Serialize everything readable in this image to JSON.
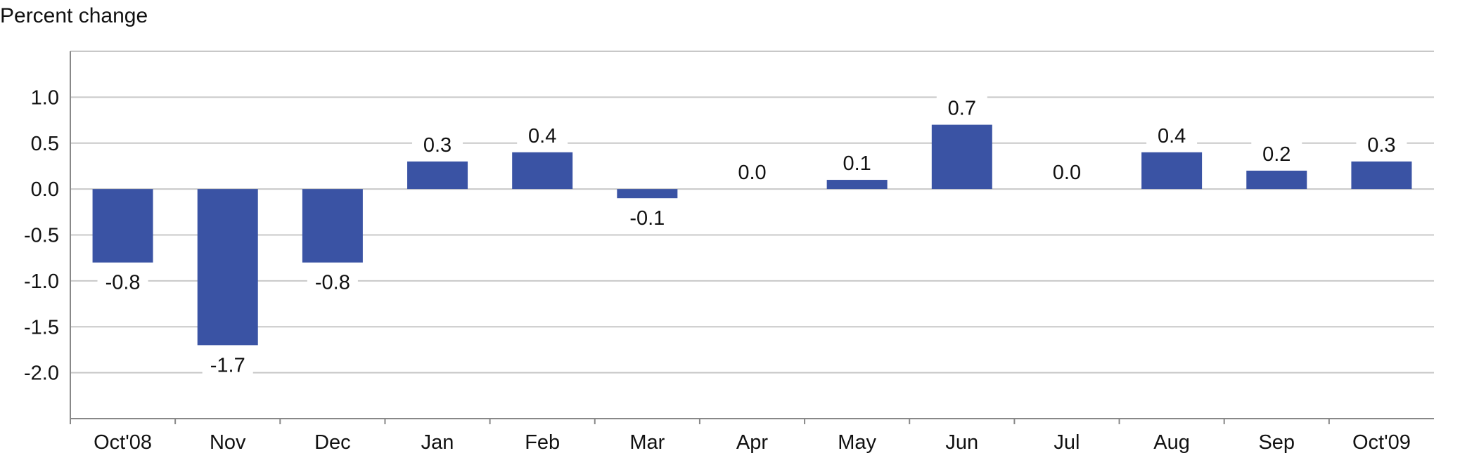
{
  "chart_data": {
    "type": "bar",
    "ylabel": "Percent change",
    "categories": [
      "Oct'08",
      "Nov",
      "Dec",
      "Jan",
      "Feb",
      "Mar",
      "Apr",
      "May",
      "Jun",
      "Jul",
      "Aug",
      "Sep",
      "Oct'09"
    ],
    "values": [
      -0.8,
      -1.7,
      -0.8,
      0.3,
      0.4,
      -0.1,
      0.0,
      0.1,
      0.7,
      0.0,
      0.4,
      0.2,
      0.3
    ],
    "data_labels": [
      "-0.8",
      "-1.7",
      "-0.8",
      "0.3",
      "0.4",
      "-0.1",
      "0.0",
      "0.1",
      "0.7",
      "0.0",
      "0.4",
      "0.2",
      "0.3"
    ],
    "yticks": [
      "1.0",
      "0.5",
      "0.0",
      "-0.5",
      "-1.0",
      "-1.5",
      "-2.0"
    ],
    "ytick_values": [
      1.0,
      0.5,
      0.0,
      -0.5,
      -1.0,
      -1.5,
      -2.0
    ],
    "ylim": [
      -2.5,
      1.5
    ],
    "grid": true,
    "bar_color": "#3a53a4",
    "grid_color": "#c8c8c8"
  }
}
